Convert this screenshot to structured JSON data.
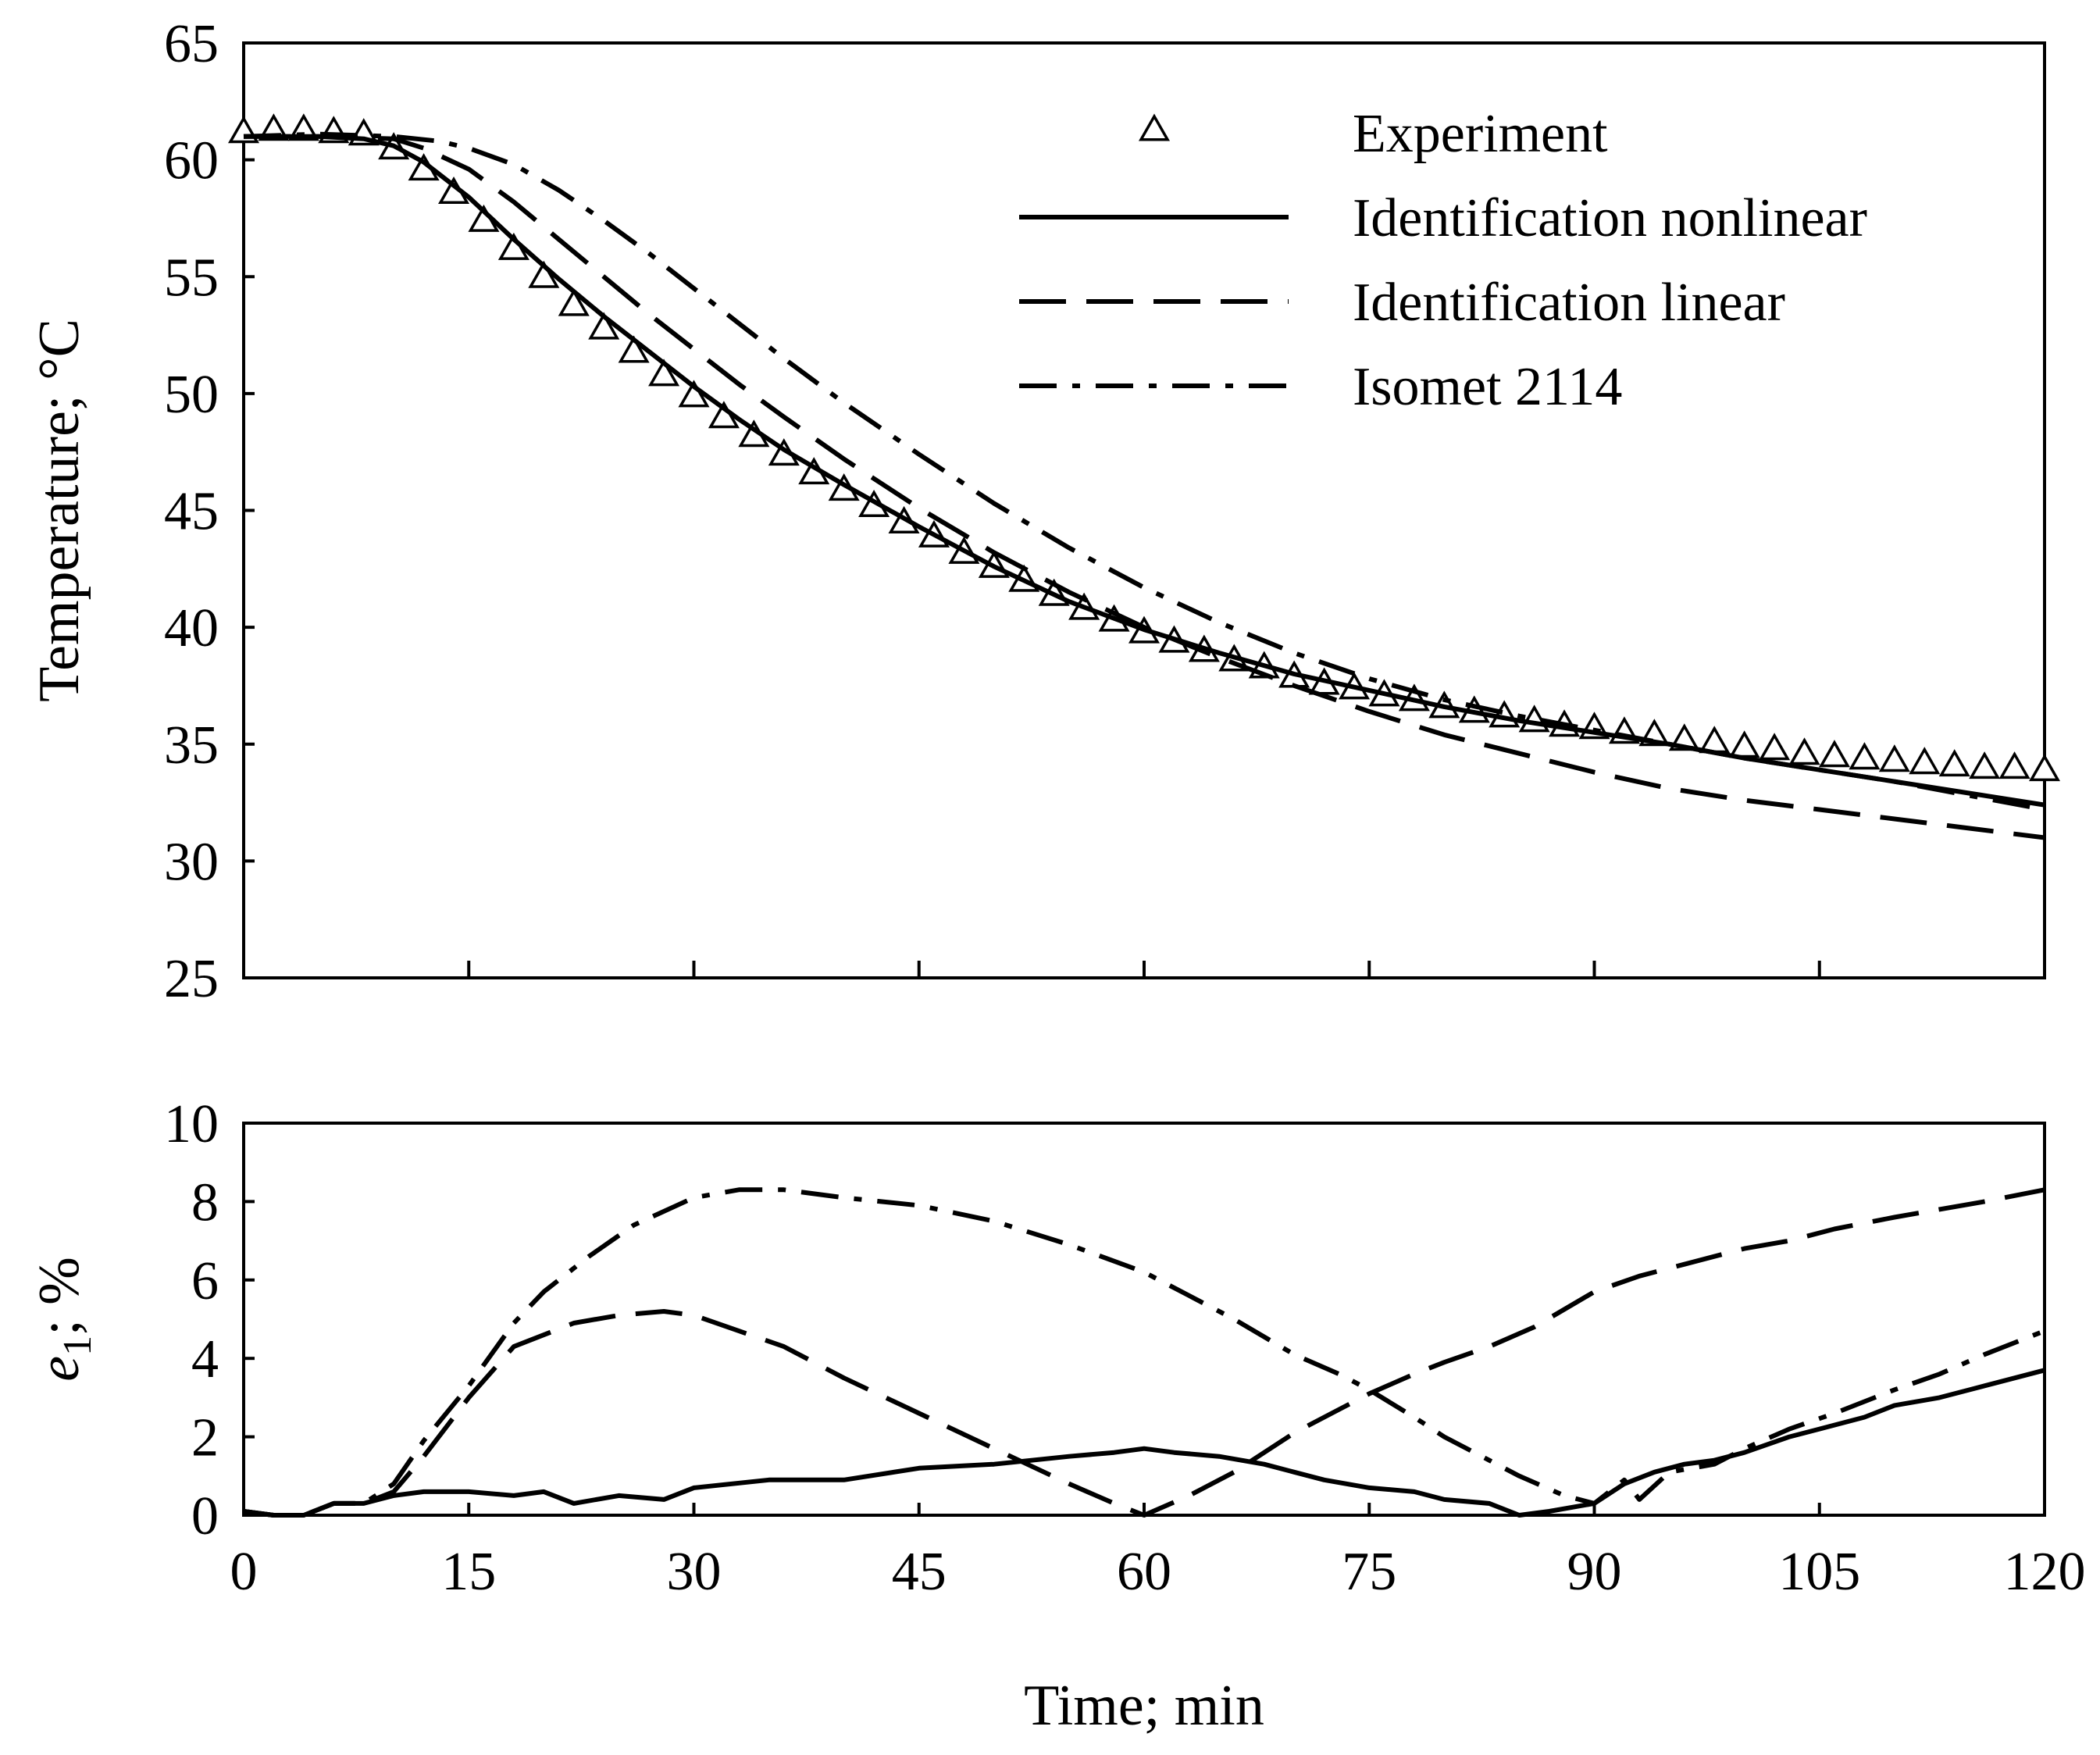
{
  "chart_data": [
    {
      "type": "line",
      "title": "",
      "xlabel": "",
      "ylabel": "Temperature; °C",
      "xlim": [
        0,
        120
      ],
      "ylim": [
        25,
        65
      ],
      "x_ticks": [
        0,
        15,
        30,
        45,
        60,
        75,
        90,
        105,
        120
      ],
      "y_ticks": [
        25,
        30,
        35,
        40,
        45,
        50,
        55,
        60,
        65
      ],
      "y_tick_labels": [
        "25",
        "30",
        "35",
        "40",
        "45",
        "50",
        "55",
        "60",
        "65"
      ],
      "grid": false,
      "legend_position": "top-right",
      "legend": [
        "Experiment",
        "Identification nonlinear",
        "Identification linear",
        "Isomet 2114"
      ],
      "series": [
        {
          "name": "Experiment",
          "style": "triangle-markers",
          "x": [
            0,
            2,
            4,
            6,
            8,
            10,
            12,
            14,
            16,
            18,
            20,
            22,
            24,
            26,
            28,
            30,
            32,
            34,
            36,
            38,
            40,
            42,
            44,
            46,
            48,
            50,
            52,
            54,
            56,
            58,
            60,
            62,
            64,
            66,
            68,
            70,
            72,
            74,
            76,
            78,
            80,
            82,
            84,
            86,
            88,
            90,
            92,
            94,
            96,
            98,
            100,
            102,
            104,
            106,
            108,
            110,
            112,
            114,
            116,
            118,
            120
          ],
          "y": [
            61.2,
            61.3,
            61.3,
            61.2,
            61.1,
            60.5,
            59.6,
            58.6,
            57.4,
            56.2,
            55.0,
            53.8,
            52.8,
            51.8,
            50.8,
            49.9,
            49.0,
            48.2,
            47.4,
            46.6,
            45.9,
            45.2,
            44.5,
            43.9,
            43.2,
            42.6,
            42.0,
            41.4,
            40.8,
            40.3,
            39.8,
            39.4,
            39.0,
            38.6,
            38.3,
            37.9,
            37.6,
            37.4,
            37.1,
            36.9,
            36.6,
            36.4,
            36.2,
            36.0,
            35.8,
            35.7,
            35.5,
            35.4,
            35.2,
            35.1,
            34.9,
            34.8,
            34.6,
            34.5,
            34.4,
            34.3,
            34.2,
            34.1,
            34.0,
            34.0,
            33.9
          ]
        },
        {
          "name": "Identification nonlinear",
          "style": "solid",
          "x": [
            0,
            5,
            8,
            10,
            12,
            15,
            18,
            21,
            24,
            27,
            30,
            33,
            36,
            40,
            45,
            50,
            55,
            60,
            65,
            70,
            75,
            80,
            85,
            90,
            95,
            100,
            105,
            110,
            115,
            120
          ],
          "y": [
            61.0,
            61.0,
            60.9,
            60.6,
            59.9,
            58.4,
            56.6,
            54.9,
            53.3,
            51.8,
            50.3,
            48.9,
            47.6,
            46.1,
            44.3,
            42.6,
            41.1,
            39.9,
            38.9,
            38.0,
            37.3,
            36.6,
            36.0,
            35.5,
            35.0,
            34.4,
            33.9,
            33.4,
            32.9,
            32.4
          ]
        },
        {
          "name": "Identification linear",
          "style": "dashed",
          "x": [
            0,
            5,
            10,
            12,
            15,
            18,
            21,
            24,
            27,
            30,
            33,
            36,
            40,
            45,
            50,
            55,
            60,
            65,
            70,
            75,
            80,
            85,
            90,
            95,
            100,
            105,
            110,
            115,
            120
          ],
          "y": [
            61.0,
            61.0,
            60.9,
            60.5,
            59.6,
            58.2,
            56.6,
            55.0,
            53.4,
            51.9,
            50.4,
            49.0,
            47.2,
            45.1,
            43.2,
            41.5,
            40.0,
            38.7,
            37.5,
            36.4,
            35.4,
            34.6,
            33.8,
            33.1,
            32.6,
            32.2,
            31.8,
            31.4,
            31.0
          ]
        },
        {
          "name": "Isomet 2114",
          "style": "dash-dot",
          "x": [
            0,
            5,
            10,
            13,
            15,
            18,
            21,
            24,
            27,
            30,
            33,
            36,
            40,
            45,
            50,
            55,
            60,
            65,
            70,
            75,
            80,
            85,
            90,
            95,
            100,
            105,
            110,
            115,
            120
          ],
          "y": [
            61.0,
            61.1,
            61.0,
            60.8,
            60.5,
            59.8,
            58.7,
            57.4,
            56.0,
            54.5,
            53.0,
            51.5,
            49.6,
            47.4,
            45.3,
            43.4,
            41.7,
            40.2,
            38.9,
            37.8,
            36.9,
            36.2,
            35.6,
            35.0,
            34.4,
            33.9,
            33.4,
            32.8,
            32.2
          ]
        }
      ]
    },
    {
      "type": "line",
      "title": "",
      "xlabel": "Time; min",
      "ylabel": "e1; %",
      "ylabel_parts": {
        "symbol": "e",
        "subscript": "1",
        "suffix": "; %"
      },
      "xlim": [
        0,
        120
      ],
      "ylim": [
        0,
        10
      ],
      "x_ticks": [
        0,
        15,
        30,
        45,
        60,
        75,
        90,
        105,
        120
      ],
      "x_tick_labels": [
        "0",
        "15",
        "30",
        "45",
        "60",
        "75",
        "90",
        "105",
        "120"
      ],
      "y_ticks": [
        0,
        2,
        4,
        6,
        8,
        10
      ],
      "y_tick_labels": [
        "0",
        "2",
        "4",
        "6",
        "8",
        "10"
      ],
      "grid": false,
      "series": [
        {
          "name": "Identification nonlinear",
          "style": "solid",
          "x": [
            0,
            2,
            4,
            6,
            8,
            10,
            12,
            15,
            18,
            20,
            22,
            25,
            28,
            30,
            35,
            40,
            45,
            50,
            55,
            58,
            60,
            62,
            65,
            68,
            70,
            72,
            75,
            78,
            80,
            83,
            85,
            87,
            90,
            92,
            94,
            96,
            98,
            100,
            103,
            105,
            108,
            110,
            113,
            115,
            118,
            120
          ],
          "y": [
            0.1,
            0.0,
            0.0,
            0.3,
            0.3,
            0.5,
            0.6,
            0.6,
            0.5,
            0.6,
            0.3,
            0.5,
            0.4,
            0.7,
            0.9,
            0.9,
            1.2,
            1.3,
            1.5,
            1.6,
            1.7,
            1.6,
            1.5,
            1.3,
            1.1,
            0.9,
            0.7,
            0.6,
            0.4,
            0.3,
            0.0,
            0.1,
            0.3,
            0.8,
            1.1,
            1.3,
            1.4,
            1.6,
            2.0,
            2.2,
            2.5,
            2.8,
            3.0,
            3.2,
            3.5,
            3.7
          ]
        },
        {
          "name": "Identification linear",
          "style": "dashed",
          "x": [
            0,
            2,
            4,
            6,
            8,
            10,
            12,
            15,
            18,
            20,
            22,
            25,
            28,
            30,
            33,
            36,
            40,
            45,
            50,
            55,
            58,
            60,
            63,
            66,
            70,
            73,
            75,
            78,
            80,
            83,
            86,
            90,
            93,
            96,
            100,
            103,
            106,
            110,
            113,
            116,
            120
          ],
          "y": [
            0.1,
            0.0,
            0.0,
            0.3,
            0.3,
            0.6,
            1.5,
            3.0,
            4.3,
            4.6,
            4.9,
            5.1,
            5.2,
            5.1,
            4.7,
            4.3,
            3.5,
            2.6,
            1.7,
            0.8,
            0.3,
            0.0,
            0.5,
            1.1,
            2.1,
            2.7,
            3.1,
            3.6,
            3.9,
            4.3,
            4.8,
            5.7,
            6.1,
            6.4,
            6.8,
            7.0,
            7.3,
            7.6,
            7.8,
            8.0,
            8.3
          ]
        },
        {
          "name": "Isomet 2114",
          "style": "dash-dot",
          "x": [
            0,
            2,
            4,
            6,
            8,
            10,
            12,
            15,
            18,
            20,
            23,
            26,
            30,
            33,
            36,
            40,
            45,
            50,
            55,
            60,
            63,
            66,
            70,
            73,
            75,
            78,
            80,
            83,
            85,
            88,
            90,
            92,
            93,
            95,
            98,
            100,
            103,
            106,
            110,
            113,
            116,
            120
          ],
          "y": [
            0.1,
            0.0,
            0.0,
            0.3,
            0.3,
            0.8,
            1.9,
            3.3,
            4.9,
            5.7,
            6.6,
            7.4,
            8.1,
            8.3,
            8.3,
            8.1,
            7.9,
            7.5,
            6.9,
            6.2,
            5.6,
            5.0,
            4.1,
            3.6,
            3.2,
            2.5,
            2.0,
            1.4,
            1.0,
            0.5,
            0.3,
            0.9,
            0.4,
            1.1,
            1.3,
            1.7,
            2.2,
            2.6,
            3.2,
            3.6,
            4.1,
            4.7
          ]
        }
      ]
    }
  ]
}
